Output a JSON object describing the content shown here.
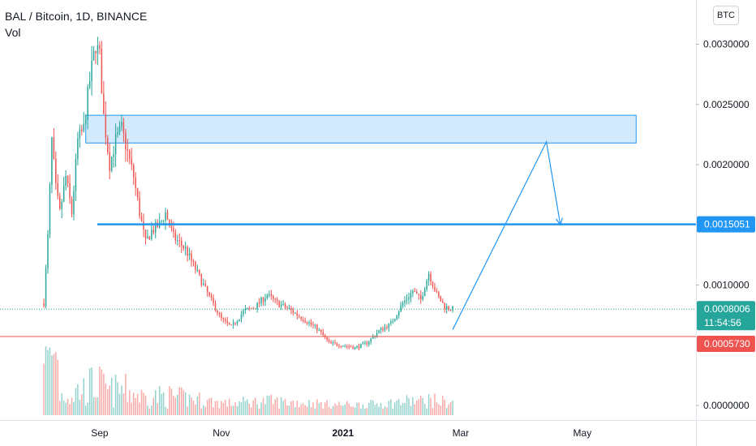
{
  "legend": {
    "title": "BAL / Bitcoin, 1D, BINANCE",
    "indicator": "Vol"
  },
  "currency_button": "BTC",
  "colors": {
    "up": "#26a69a",
    "down": "#ef5350",
    "resistance_line": "#2196f3",
    "zone_fill": "#bbdefb",
    "zone_border": "#2196f3",
    "support_line": "#ef5350",
    "last_price": "#26a69a",
    "forecast_arrow": "#2196f3"
  },
  "chart_data": {
    "type": "candlestick",
    "ylim": [
      -8e-05,
      0.0033
    ],
    "y_ticks": [
      {
        "value": 0.003,
        "label": "0.0030000"
      },
      {
        "value": 0.0025,
        "label": "0.0025000"
      },
      {
        "value": 0.002,
        "label": "0.0020000"
      },
      {
        "value": 0.001,
        "label": "0.0010000"
      },
      {
        "value": 0.0,
        "label": "0.0000000"
      }
    ],
    "x_ticks": [
      {
        "date": "2020-09-01",
        "label": "Sep",
        "bold": false
      },
      {
        "date": "2020-11-01",
        "label": "Nov",
        "bold": false
      },
      {
        "date": "2021-01-01",
        "label": "2021",
        "bold": true
      },
      {
        "date": "2021-03-01",
        "label": "Mar",
        "bold": false
      },
      {
        "date": "2021-05-01",
        "label": "May",
        "bold": false
      }
    ],
    "x_range": [
      "2020-07-13",
      "2021-06-27"
    ],
    "price_path": [
      [
        "2020-08-04",
        0.00085
      ],
      [
        "2020-08-06",
        0.0014
      ],
      [
        "2020-08-08",
        0.0022
      ],
      [
        "2020-08-10",
        0.0018
      ],
      [
        "2020-08-12",
        0.0016
      ],
      [
        "2020-08-15",
        0.0019
      ],
      [
        "2020-08-18",
        0.0016
      ],
      [
        "2020-08-21",
        0.0022
      ],
      [
        "2020-08-24",
        0.0023
      ],
      [
        "2020-08-27",
        0.0027
      ],
      [
        "2020-08-30",
        0.003
      ],
      [
        "2020-09-01",
        0.0029
      ],
      [
        "2020-09-03",
        0.0024
      ],
      [
        "2020-09-06",
        0.002
      ],
      [
        "2020-09-09",
        0.0022
      ],
      [
        "2020-09-12",
        0.0023
      ],
      [
        "2020-09-15",
        0.0021
      ],
      [
        "2020-09-18",
        0.0019
      ],
      [
        "2020-09-21",
        0.0016
      ],
      [
        "2020-09-24",
        0.00135
      ],
      [
        "2020-09-27",
        0.00145
      ],
      [
        "2020-10-01",
        0.0015
      ],
      [
        "2020-10-04",
        0.0016
      ],
      [
        "2020-10-08",
        0.0014
      ],
      [
        "2020-10-14",
        0.0013
      ],
      [
        "2020-10-20",
        0.0011
      ],
      [
        "2020-10-26",
        0.0009
      ],
      [
        "2020-11-01",
        0.00072
      ],
      [
        "2020-11-06",
        0.00065
      ],
      [
        "2020-11-12",
        0.00078
      ],
      [
        "2020-11-18",
        0.00082
      ],
      [
        "2020-11-24",
        0.00092
      ],
      [
        "2020-11-29",
        0.00085
      ],
      [
        "2020-12-05",
        0.0008
      ],
      [
        "2020-12-12",
        0.00072
      ],
      [
        "2020-12-19",
        0.00064
      ],
      [
        "2020-12-25",
        0.00052
      ],
      [
        "2021-01-01",
        0.0005
      ],
      [
        "2021-01-07",
        0.00048
      ],
      [
        "2021-01-13",
        0.00052
      ],
      [
        "2021-01-19",
        0.00062
      ],
      [
        "2021-01-25",
        0.00068
      ],
      [
        "2021-01-31",
        0.00085
      ],
      [
        "2021-02-05",
        0.00095
      ],
      [
        "2021-02-09",
        0.00088
      ],
      [
        "2021-02-13",
        0.0011
      ],
      [
        "2021-02-17",
        0.00092
      ],
      [
        "2021-02-21",
        0.00082
      ],
      [
        "2021-02-25",
        0.0008
      ]
    ],
    "horizontal_level": 0.0015051,
    "horizontal_level_label": "0.0015051",
    "support_level": 0.000573,
    "support_level_label": "0.0005730",
    "last_price": 0.0008006,
    "last_price_label": "0.0008006",
    "countdown_label": "11:54:56",
    "resistance_zone": {
      "x_start": "2020-08-25",
      "x_end": "2021-05-28",
      "y_low": 0.00218,
      "y_high": 0.00241
    },
    "forecast_path": [
      [
        "2021-02-25",
        0.00063
      ],
      [
        "2021-04-13",
        0.00219
      ],
      [
        "2021-04-20",
        0.0015
      ]
    ]
  }
}
